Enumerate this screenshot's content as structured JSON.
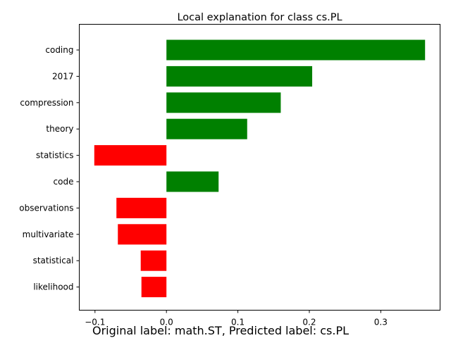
{
  "chart_data": {
    "type": "bar",
    "orientation": "horizontal",
    "title": "Local explanation for class cs.PL",
    "xlabel": "",
    "ylabel": "",
    "categories": [
      "coding",
      "2017",
      "compression",
      "theory",
      "statistics",
      "code",
      "observations",
      "multivariate",
      "statistical",
      "likelihood"
    ],
    "values": [
      0.362,
      0.204,
      0.16,
      0.113,
      -0.101,
      0.073,
      -0.07,
      -0.068,
      -0.036,
      -0.035
    ],
    "xlim": [
      -0.122,
      0.383
    ],
    "xticks": [
      -0.1,
      0.0,
      0.1,
      0.2,
      0.3
    ],
    "xtick_labels": [
      "−0.1",
      "0.0",
      "0.1",
      "0.2",
      "0.3"
    ],
    "grid": false,
    "colors": {
      "positive": "#008000",
      "negative": "#ff0000"
    }
  },
  "caption": "Original label: math.ST, Predicted label: cs.PL"
}
